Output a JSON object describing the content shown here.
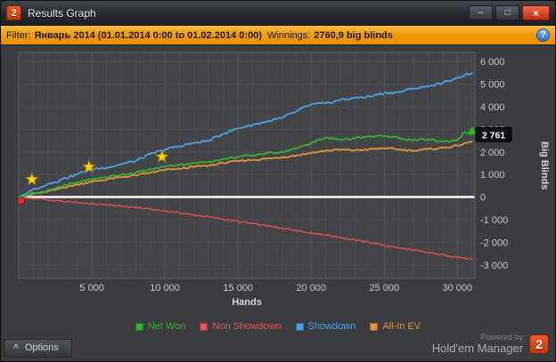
{
  "window": {
    "title": "Results Graph",
    "app_icon_text": "2",
    "controls": {
      "minimize_glyph": "–",
      "maximize_glyph": "□",
      "close_glyph": "×"
    }
  },
  "filter_bar": {
    "filter_label": "Filter:",
    "filter_value": "Январь 2014 (01.01.2014 0:00 to 01.02.2014 0:00)",
    "winnings_label": "Winnings:",
    "winnings_value": "2760,9 big blinds",
    "help_glyph": "?"
  },
  "chart_data": {
    "type": "line",
    "title": "",
    "xlabel": "Hands",
    "ylabel": "Big Blinds",
    "xlim": [
      0,
      31200
    ],
    "ylim": [
      -3600,
      6400
    ],
    "grid": true,
    "legend_position": "bottom",
    "zero_line_color": "#ffffff",
    "x_ticks": [
      5000,
      10000,
      15000,
      20000,
      25000,
      30000
    ],
    "x_tick_labels": [
      "5 000",
      "10 000",
      "15 000",
      "20 000",
      "25 000",
      "30 000"
    ],
    "y_ticks": [
      6000,
      5000,
      4000,
      3000,
      2000,
      1000,
      0,
      -1000,
      -2000,
      -3000
    ],
    "y_tick_labels": [
      "6 000",
      "5 000",
      "4 000",
      "3 000",
      "2 000",
      "1 000",
      "0",
      "-1 000",
      "-2 000",
      "-3 000"
    ],
    "current_value_badge": {
      "text": "2 761",
      "value": 2761
    },
    "x": [
      0,
      500,
      1000,
      1500,
      2000,
      2500,
      3000,
      4000,
      5000,
      6000,
      7000,
      8000,
      9000,
      10000,
      11000,
      12000,
      13000,
      14000,
      15000,
      16000,
      17000,
      18000,
      19000,
      20000,
      21000,
      22000,
      23000,
      24000,
      25000,
      26000,
      27000,
      28000,
      29000,
      30000,
      30500,
      31000
    ],
    "series": [
      {
        "name": "Non Showdown",
        "color": "#d94f4f",
        "width": 1.6,
        "noise": 30,
        "values": [
          0,
          -40,
          -80,
          -60,
          -130,
          -160,
          -190,
          -240,
          -300,
          -350,
          -400,
          -460,
          -540,
          -620,
          -700,
          -790,
          -880,
          -980,
          -1080,
          -1180,
          -1280,
          -1380,
          -1480,
          -1580,
          -1680,
          -1790,
          -1900,
          -2010,
          -2140,
          -2250,
          -2350,
          -2460,
          -2560,
          -2650,
          -2700,
          -2750
        ]
      },
      {
        "name": "All-In EV",
        "color": "#e8943a",
        "width": 1.8,
        "noise": 40,
        "values": [
          0,
          40,
          150,
          200,
          260,
          320,
          420,
          560,
          680,
          780,
          880,
          960,
          1080,
          1200,
          1260,
          1340,
          1400,
          1500,
          1600,
          1640,
          1700,
          1760,
          1850,
          1950,
          2050,
          2100,
          2060,
          2120,
          2160,
          2100,
          2060,
          2120,
          2180,
          2280,
          2380,
          2450
        ]
      },
      {
        "name": "Showdown",
        "color": "#4aa2e8",
        "width": 1.8,
        "noise": 55,
        "values": [
          0,
          150,
          350,
          420,
          600,
          650,
          800,
          1000,
          1250,
          1300,
          1450,
          1600,
          1900,
          2100,
          2250,
          2400,
          2500,
          2800,
          3050,
          3200,
          3350,
          3500,
          3800,
          4100,
          4150,
          4300,
          4400,
          4450,
          4600,
          4650,
          4800,
          4900,
          5050,
          5300,
          5400,
          5500
        ]
      },
      {
        "name": "Net Won",
        "color": "#35b135",
        "width": 1.8,
        "noise": 45,
        "values": [
          0,
          60,
          200,
          160,
          320,
          380,
          480,
          650,
          800,
          880,
          980,
          1080,
          1220,
          1350,
          1430,
          1500,
          1560,
          1680,
          1780,
          1850,
          1950,
          2000,
          2150,
          2400,
          2620,
          2550,
          2600,
          2680,
          2700,
          2620,
          2500,
          2560,
          2450,
          2520,
          2880,
          2761
        ]
      }
    ],
    "markers": {
      "stars": [
        {
          "x": 900,
          "y": 780
        },
        {
          "x": 4800,
          "y": 1330
        },
        {
          "x": 9800,
          "y": 1780
        }
      ],
      "star_color": "#ffd400",
      "start_dot": {
        "x": 150,
        "y": -170,
        "color": "#e62e2e"
      },
      "end_triangle": {
        "x": 31000,
        "y": 2761,
        "color": "#2db82d"
      }
    }
  },
  "legend": {
    "items": [
      {
        "label": "Net Won",
        "color": "#35b135"
      },
      {
        "label": "Non Showdown",
        "color": "#e05a5a"
      },
      {
        "label": "Showdown",
        "color": "#4aa2e8"
      },
      {
        "label": "All-In EV",
        "color": "#e8943a"
      }
    ]
  },
  "footer": {
    "options_label": "Options",
    "options_chevron": "^",
    "powered_by": "Powered by",
    "brand": "Hold'em Manager",
    "brand_logo_text": "2"
  }
}
